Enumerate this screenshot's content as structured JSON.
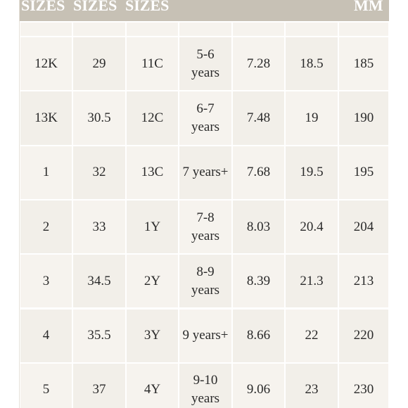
{
  "header": {
    "sizes": [
      "SIZES",
      "SIZES",
      "SIZES"
    ],
    "mm": "MM"
  },
  "table": {
    "rows": [
      [
        "12K",
        "29",
        "11C",
        "5-6 years",
        "7.28",
        "18.5",
        "185"
      ],
      [
        "13K",
        "30.5",
        "12C",
        "6-7 years",
        "7.48",
        "19",
        "190"
      ],
      [
        "1",
        "32",
        "13C",
        "7 years+",
        "7.68",
        "19.5",
        "195"
      ],
      [
        "2",
        "33",
        "1Y",
        "7-8 years",
        "8.03",
        "20.4",
        "204"
      ],
      [
        "3",
        "34.5",
        "2Y",
        "8-9 years",
        "8.39",
        "21.3",
        "213"
      ],
      [
        "4",
        "35.5",
        "3Y",
        "9 years+",
        "8.66",
        "22",
        "220"
      ],
      [
        "5",
        "37",
        "4Y",
        "9-10 years",
        "9.06",
        "23",
        "230"
      ]
    ]
  }
}
